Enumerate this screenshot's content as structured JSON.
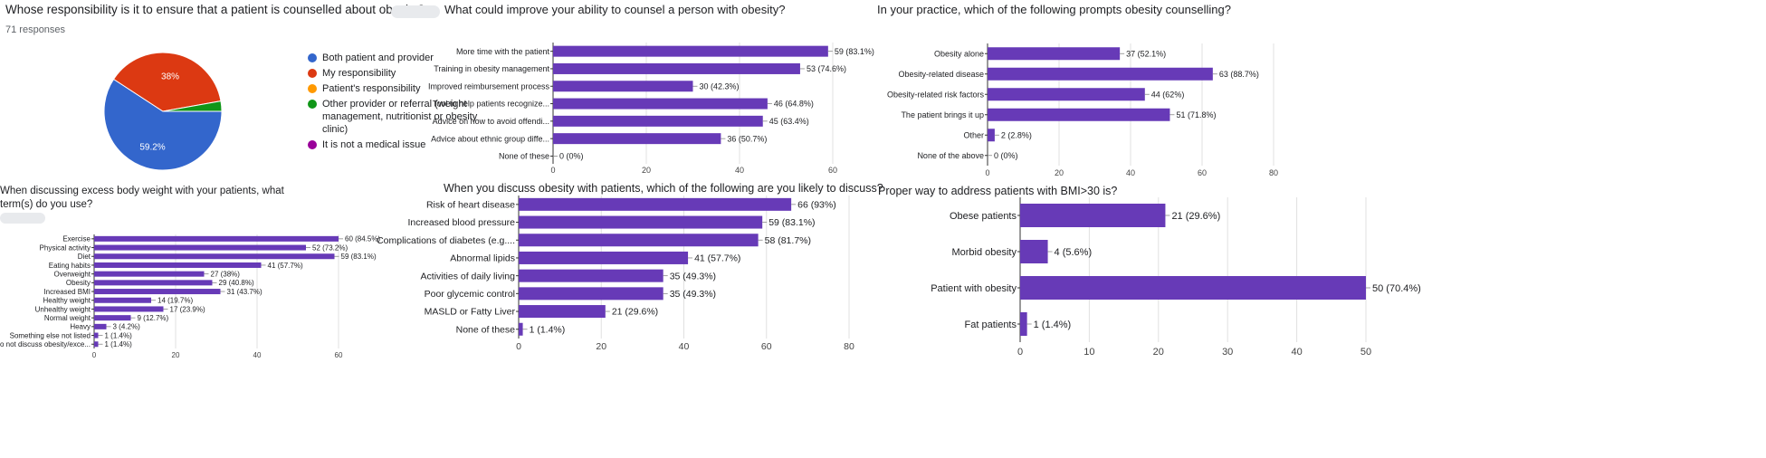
{
  "colors": {
    "bar": "#673ab7",
    "pie": [
      "#3366cc",
      "#dc3912",
      "#ff9900",
      "#109618",
      "#990099"
    ]
  },
  "charts": {
    "p1": {
      "title": "Whose responsibility is it to ensure that a patient is counselled about obesity?",
      "responses": "71 responses"
    },
    "p2": {
      "title": "What could improve your ability to counsel a person with obesity?"
    },
    "p3": {
      "title": "In your practice, which of the following prompts obesity counselling?"
    },
    "p4": {
      "title": "When discussing excess body weight with your patients, what term(s) do you use?"
    },
    "p5": {
      "title": "When you discuss obesity with patients, which of the following are you likely to discuss?"
    },
    "p6": {
      "title": "Proper way to address patients with BMI>30 is?"
    }
  },
  "chart_data": [
    {
      "id": "p1",
      "type": "pie",
      "title": "Whose responsibility is it to ensure that a patient is counselled about obesity?",
      "categories": [
        "Both patient and provider",
        "My responsibility",
        "Patient's responsibility",
        "Other provider or referral (weight management, nutritionist or obesity clinic)",
        "It is not a medical issue"
      ],
      "values": [
        59.2,
        38.0,
        0.0,
        2.8,
        0.0
      ],
      "slice_labels": [
        "59.2%",
        "38%",
        "",
        "",
        ""
      ],
      "legend": "right"
    },
    {
      "id": "p2",
      "type": "bar",
      "orientation": "horizontal",
      "categories": [
        "More time with the patient",
        "Training in obesity management",
        "Improved reimbursement process",
        "Tool to help patients recognize...",
        "Advice on how to avoid offendi...",
        "Advice about ethnic group diffe...",
        "None of these"
      ],
      "values": [
        59,
        53,
        30,
        46,
        45,
        36,
        0
      ],
      "value_labels": [
        "59 (83.1%)",
        "53 (74.6%)",
        "30 (42.3%)",
        "46 (64.8%)",
        "45 (63.4%)",
        "36 (50.7%)",
        "0 (0%)"
      ],
      "xlim": [
        0,
        60
      ],
      "xticks": [
        "0",
        "20",
        "40",
        "60"
      ],
      "grid": true
    },
    {
      "id": "p3",
      "type": "bar",
      "orientation": "horizontal",
      "categories": [
        "Obesity alone",
        "Obesity-related disease",
        "Obesity-related risk factors",
        "The patient brings it up",
        "Other",
        "None of the above"
      ],
      "values": [
        37,
        63,
        44,
        51,
        2,
        0
      ],
      "value_labels": [
        "37 (52.1%)",
        "63 (88.7%)",
        "44 (62%)",
        "51 (71.8%)",
        "2 (2.8%)",
        "0 (0%)"
      ],
      "xlim": [
        0,
        80
      ],
      "xticks": [
        "0",
        "20",
        "40",
        "60",
        "80"
      ],
      "grid": true
    },
    {
      "id": "p4",
      "type": "bar",
      "orientation": "horizontal",
      "categories": [
        "Exercise",
        "Physical activity",
        "Diet",
        "Eating habits",
        "Overweight",
        "Obesity",
        "Increased BMI",
        "Healthy weight",
        "Unhealthy weight",
        "Normal weight",
        "Heavy",
        "Something else not listed",
        "I do not discuss obesity/exce..."
      ],
      "values": [
        60,
        52,
        59,
        41,
        27,
        29,
        31,
        14,
        17,
        9,
        3,
        1,
        1
      ],
      "value_labels": [
        "60 (84.5%)",
        "52 (73.2%)",
        "59 (83.1%)",
        "41 (57.7%)",
        "27 (38%)",
        "29 (40.8%)",
        "31 (43.7%)",
        "14 (19.7%)",
        "17 (23.9%)",
        "9 (12.7%)",
        "3 (4.2%)",
        "1 (1.4%)",
        "1 (1.4%)"
      ],
      "xlim": [
        0,
        60
      ],
      "xticks": [
        "0",
        "20",
        "40",
        "60"
      ],
      "grid": true
    },
    {
      "id": "p5",
      "type": "bar",
      "orientation": "horizontal",
      "categories": [
        "Risk of heart disease",
        "Increased blood pressure",
        "Complications of diabetes (e.g....",
        "Abnormal lipids",
        "Activities of daily living",
        "Poor glycemic control",
        "MASLD or Fatty Liver",
        "None of these"
      ],
      "values": [
        66,
        59,
        58,
        41,
        35,
        35,
        21,
        1
      ],
      "value_labels": [
        "66 (93%)",
        "59 (83.1%)",
        "58 (81.7%)",
        "41 (57.7%)",
        "35 (49.3%)",
        "35 (49.3%)",
        "21 (29.6%)",
        "1 (1.4%)"
      ],
      "xlim": [
        0,
        80
      ],
      "xticks": [
        "0",
        "20",
        "40",
        "60",
        "80"
      ],
      "grid": true
    },
    {
      "id": "p6",
      "type": "bar",
      "orientation": "horizontal",
      "categories": [
        "Obese patients",
        "Morbid obesity",
        "Patient with obesity",
        "Fat patients"
      ],
      "values": [
        21,
        4,
        50,
        1
      ],
      "value_labels": [
        "21 (29.6%)",
        "4 (5.6%)",
        "50 (70.4%)",
        "1 (1.4%)"
      ],
      "xlim": [
        0,
        50
      ],
      "xticks": [
        "0",
        "10",
        "20",
        "30",
        "40",
        "50"
      ],
      "grid": true
    }
  ]
}
